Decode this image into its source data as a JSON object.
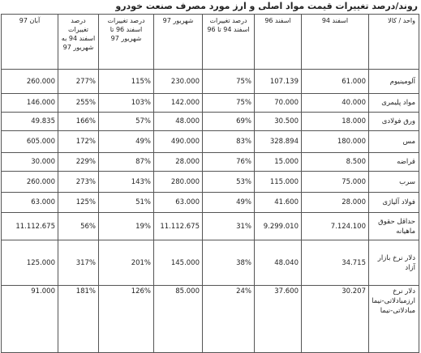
{
  "title": "روند/درصد تغییرات قیمت مواد اصلی و ارز مورد مصرف صنعت خودرو",
  "headers": {
    "item": "واحد / کالا",
    "h94": "اسفند 94",
    "h96": "اسفند 96",
    "pct_94_96": "درصد تغییرات اسفند 94 تا 96",
    "shahrivar97": "شهریور 97",
    "pct_96_97": "درصد تغییرات اسفند 96 تا شهریور 97",
    "pct_94_97": "درصد تغییرات اسفند 94 به شهریور 97",
    "aban97": "آبان 97"
  },
  "rows": [
    {
      "item": "آلومینیوم",
      "h94": "61.000",
      "h96": "107.139",
      "pct_94_96": "75%",
      "shahrivar97": "230.000",
      "pct_96_97": "115%",
      "pct_94_97": "277%",
      "aban97": "260.000"
    },
    {
      "item": "مواد پلیمری",
      "h94": "40.000",
      "h96": "70.000",
      "pct_94_96": "75%",
      "shahrivar97": "142.000",
      "pct_96_97": "103%",
      "pct_94_97": "255%",
      "aban97": "146.000"
    },
    {
      "item": "ورق فولادی",
      "h94": "18.000",
      "h96": "30.500",
      "pct_94_96": "69%",
      "shahrivar97": "48.000",
      "pct_96_97": "57%",
      "pct_94_97": "166%",
      "aban97": "49.835"
    },
    {
      "item": "مس",
      "h94": "180.000",
      "h96": "328.894",
      "pct_94_96": "83%",
      "shahrivar97": "490.000",
      "pct_96_97": "49%",
      "pct_94_97": "172%",
      "aban97": "605.000"
    },
    {
      "item": "قراضه",
      "h94": "8.500",
      "h96": "15.000",
      "pct_94_96": "76%",
      "shahrivar97": "28.000",
      "pct_96_97": "87%",
      "pct_94_97": "229%",
      "aban97": "30.000"
    },
    {
      "item": "سرب",
      "h94": "75.000",
      "h96": "115.000",
      "pct_94_96": "53%",
      "shahrivar97": "280.000",
      "pct_96_97": "143%",
      "pct_94_97": "273%",
      "aban97": "260.000"
    },
    {
      "item": "فولاد آلیاژی",
      "h94": "28.000",
      "h96": "41.600",
      "pct_94_96": "49%",
      "shahrivar97": "63.000",
      "pct_96_97": "51%",
      "pct_94_97": "125%",
      "aban97": "63.000"
    },
    {
      "item": "حداقل حقوق ماهیانه",
      "h94": "7.124.100",
      "h96": "9.299.010",
      "pct_94_96": "31%",
      "shahrivar97": "11.112.675",
      "pct_96_97": "19%",
      "pct_94_97": "56%",
      "aban97": "11.112.675"
    },
    {
      "item": "دلار نرخ بازار آزاد",
      "h94": "34.715",
      "h96": "48.040",
      "pct_94_96": "38%",
      "shahrivar97": "145.000",
      "pct_96_97": "201%",
      "pct_94_97": "317%",
      "aban97": "125.000"
    },
    {
      "item": "دلار نرخ ارزمبادلاتی-نیما مبادلاتی-نیما",
      "h94": "30.207",
      "h96": "37.600",
      "pct_94_96": "24%",
      "shahrivar97": "85.000",
      "pct_96_97": "126%",
      "pct_94_97": "181%",
      "aban97": "91.000"
    }
  ]
}
